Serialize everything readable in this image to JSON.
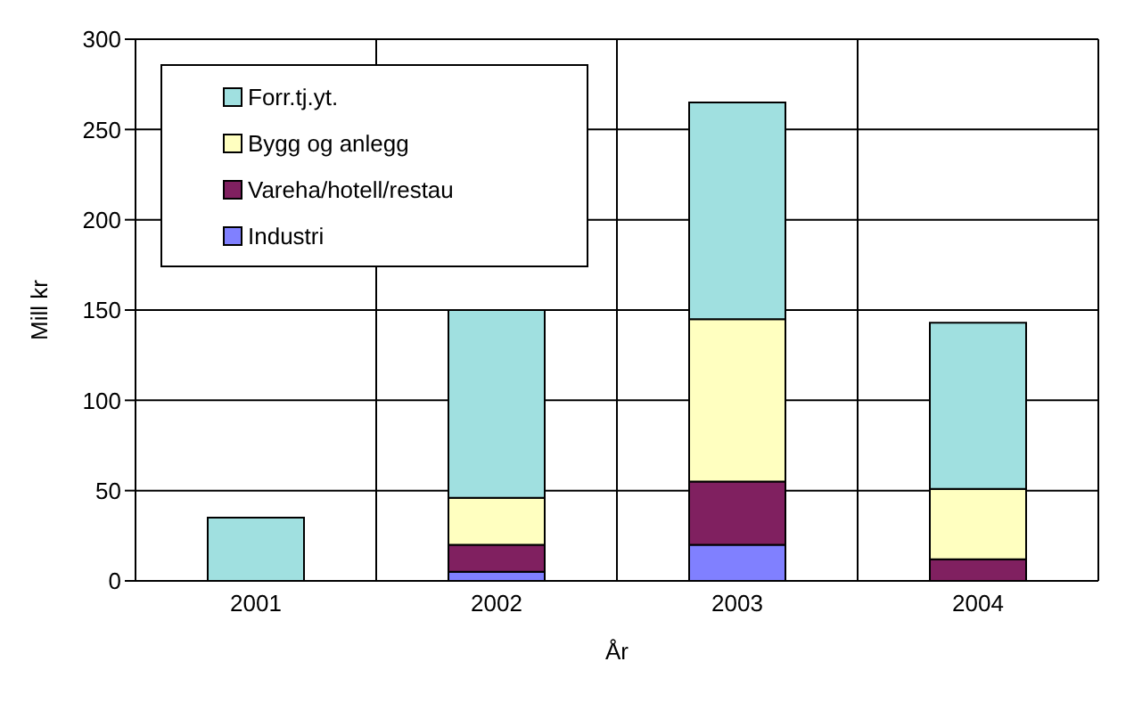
{
  "chart_data": {
    "type": "bar",
    "stacked": true,
    "xlabel": "År",
    "ylabel": "Mill kr",
    "categories": [
      "2001",
      "2002",
      "2003",
      "2004"
    ],
    "series": [
      {
        "name": "Industri",
        "color": "#8080ff",
        "values": [
          0,
          5,
          20,
          0
        ]
      },
      {
        "name": "Vareha/hotell/restau",
        "color": "#802060",
        "values": [
          0,
          15,
          35,
          12
        ]
      },
      {
        "name": "Bygg og anlegg",
        "color": "#ffffc0",
        "values": [
          0,
          26,
          90,
          39
        ]
      },
      {
        "name": "Forr.tj.yt.",
        "color": "#a0e0e0",
        "values": [
          35,
          104,
          120,
          92
        ]
      }
    ],
    "ylim": [
      0,
      300
    ],
    "yticks": [
      0,
      50,
      100,
      150,
      200,
      250,
      300
    ],
    "grid": true,
    "legend": "top left"
  }
}
